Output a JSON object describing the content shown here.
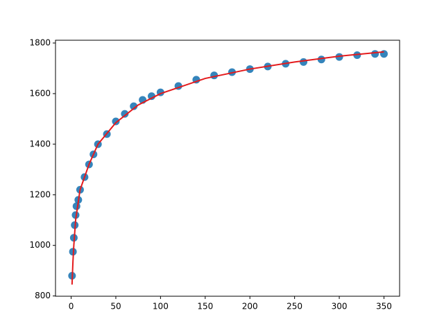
{
  "chart_data": {
    "type": "scatter",
    "points": {
      "color": "#1f77b4",
      "x": [
        1,
        2,
        3,
        4,
        5,
        6,
        8,
        10,
        15,
        20,
        25,
        30,
        40,
        50,
        60,
        70,
        80,
        90,
        100,
        120,
        140,
        160,
        180,
        200,
        220,
        240,
        260,
        280,
        300,
        320,
        340,
        350
      ],
      "values": [
        880,
        975,
        1030,
        1080,
        1120,
        1155,
        1180,
        1220,
        1270,
        1320,
        1360,
        1400,
        1440,
        1490,
        1520,
        1550,
        1575,
        1590,
        1605,
        1630,
        1655,
        1672,
        1685,
        1697,
        1707,
        1718,
        1725,
        1735,
        1745,
        1752,
        1757,
        1757
      ]
    },
    "fit": {
      "color": "#e41a1c",
      "x": [
        1,
        2,
        3,
        5,
        10,
        20,
        30,
        50,
        75,
        100,
        150,
        200,
        250,
        300,
        350
      ],
      "values": [
        845,
        935,
        1000,
        1100,
        1220,
        1320,
        1400,
        1485,
        1555,
        1600,
        1660,
        1697,
        1725,
        1748,
        1765
      ]
    },
    "xlim": [
      -17.5,
      367.5
    ],
    "xticks": [
      0,
      50,
      100,
      150,
      200,
      250,
      300,
      350
    ],
    "ylim": [
      799,
      1811
    ],
    "yticks": [
      800,
      1000,
      1200,
      1400,
      1600,
      1800
    ]
  }
}
